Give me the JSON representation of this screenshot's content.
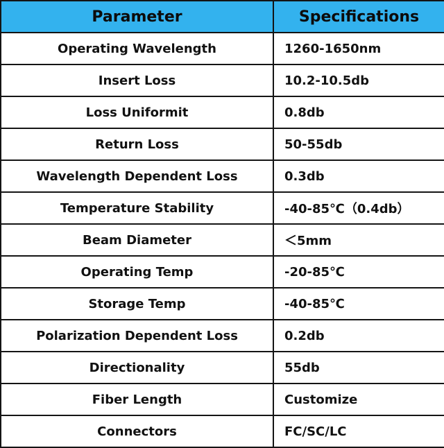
{
  "header": {
    "parameter": "Parameter",
    "specifications": "Specifications"
  },
  "colors": {
    "header_background": "#33b2ee",
    "border": "#141414",
    "text": "#111111"
  },
  "rows": [
    {
      "parameter": "Operating Wavelength",
      "value": "1260-1650nm"
    },
    {
      "parameter": "Insert Loss",
      "value": "10.2-10.5db"
    },
    {
      "parameter": "Loss Uniformit",
      "value": "0.8db"
    },
    {
      "parameter": "Return Loss",
      "value": "50-55db"
    },
    {
      "parameter": "Wavelength Dependent Loss",
      "value": "0.3db"
    },
    {
      "parameter": "Temperature Stability",
      "value": "-40-85℃（0.4db）"
    },
    {
      "parameter": "Beam Diameter",
      "value": "＜5mm"
    },
    {
      "parameter": "Operating Temp",
      "value": "-20-85℃"
    },
    {
      "parameter": "Storage Temp",
      "value": "-40-85℃"
    },
    {
      "parameter": "Polarization Dependent Loss",
      "value": "0.2db"
    },
    {
      "parameter": "Directionality",
      "value": "55db"
    },
    {
      "parameter": "Fiber Length",
      "value": "Customize"
    },
    {
      "parameter": "Connectors",
      "value": "FC/SC/LC"
    }
  ]
}
